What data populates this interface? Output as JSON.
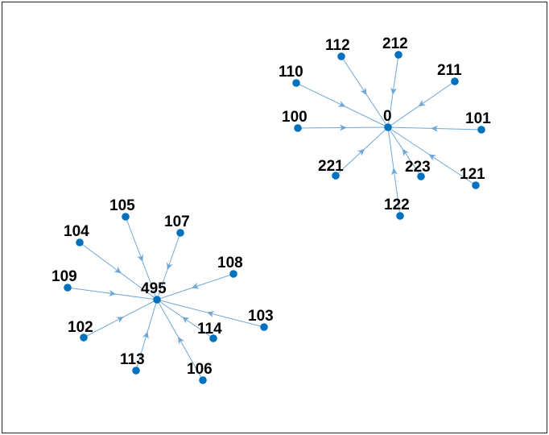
{
  "colors": {
    "node": "#0072BD",
    "edge": "#6FA8D6",
    "frame": "#262626"
  },
  "graph": {
    "components": [
      {
        "hub": "0",
        "spokes": [
          "112",
          "212",
          "110",
          "211",
          "100",
          "101",
          "221",
          "223",
          "121",
          "122"
        ]
      },
      {
        "hub": "495",
        "spokes": [
          "105",
          "107",
          "104",
          "108",
          "109",
          "102",
          "114",
          "103",
          "113",
          "106"
        ]
      }
    ],
    "edge_direction": "spoke-to-hub"
  }
}
